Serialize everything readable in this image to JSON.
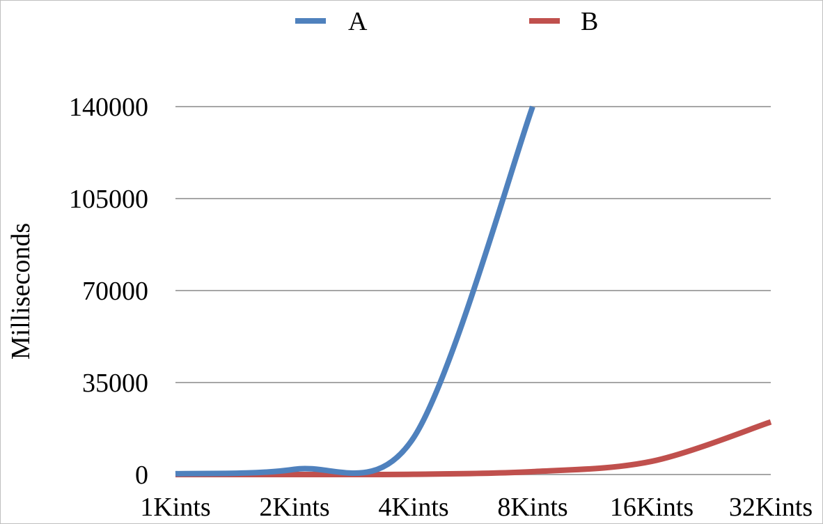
{
  "chart_data": {
    "type": "line",
    "title": "",
    "xlabel": "",
    "ylabel": "Milliseconds",
    "categories": [
      "1Kints",
      "2Kints",
      "4Kints",
      "8Kints",
      "16Kints",
      "32Kints"
    ],
    "ylim": [
      0,
      140000
    ],
    "yticks": [
      0,
      35000,
      70000,
      105000,
      140000
    ],
    "grid": true,
    "legend": "top",
    "series": [
      {
        "name": "A",
        "color": "#4f81bd",
        "values": [
          300,
          2000,
          14000,
          140000,
          null,
          null
        ]
      },
      {
        "name": "B",
        "color": "#c0504d",
        "values": [
          0,
          0,
          100,
          1100,
          5000,
          20000
        ]
      }
    ]
  },
  "colors": {
    "gridline": "#a6a6a6",
    "frame": "#bfbfbf"
  }
}
